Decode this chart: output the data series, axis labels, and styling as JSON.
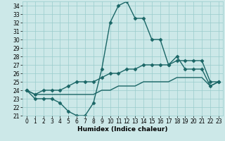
{
  "title": "",
  "xlabel": "Humidex (Indice chaleur)",
  "background_color": "#cce8e8",
  "grid_color": "#99cccc",
  "line_color": "#1a6666",
  "xlim": [
    -0.5,
    23.5
  ],
  "ylim": [
    21,
    34.5
  ],
  "yticks": [
    21,
    22,
    23,
    24,
    25,
    26,
    27,
    28,
    29,
    30,
    31,
    32,
    33,
    34
  ],
  "xticks": [
    0,
    1,
    2,
    3,
    4,
    5,
    6,
    7,
    8,
    9,
    10,
    11,
    12,
    13,
    14,
    15,
    16,
    17,
    18,
    19,
    20,
    21,
    22,
    23
  ],
  "series1_x": [
    0,
    1,
    2,
    3,
    4,
    5,
    6,
    7,
    8,
    9,
    10,
    11,
    12,
    13,
    14,
    15,
    16,
    17,
    18,
    19,
    20,
    21,
    22,
    23
  ],
  "series1_y": [
    24,
    23,
    23,
    23,
    22.5,
    21.5,
    21,
    21,
    22.5,
    26.5,
    32,
    34,
    34.5,
    32.5,
    32.5,
    30,
    30,
    27,
    28,
    26.5,
    26.5,
    26.5,
    24.5,
    25
  ],
  "series2_x": [
    0,
    1,
    2,
    3,
    4,
    5,
    6,
    7,
    8,
    9,
    10,
    11,
    12,
    13,
    14,
    15,
    16,
    17,
    18,
    19,
    20,
    21,
    22,
    23
  ],
  "series2_y": [
    24,
    23.5,
    24,
    24,
    24,
    24.5,
    25,
    25,
    25,
    25.5,
    26,
    26,
    26.5,
    26.5,
    27,
    27,
    27,
    27,
    27.5,
    27.5,
    27.5,
    27.5,
    25,
    25
  ],
  "series3_x": [
    0,
    1,
    2,
    3,
    4,
    5,
    6,
    7,
    8,
    9,
    10,
    11,
    12,
    13,
    14,
    15,
    16,
    17,
    18,
    19,
    20,
    21,
    22,
    23
  ],
  "series3_y": [
    24,
    23.5,
    23.5,
    23.5,
    23.5,
    23.5,
    23.5,
    23.5,
    23.5,
    24,
    24,
    24.5,
    24.5,
    24.5,
    25,
    25,
    25,
    25,
    25.5,
    25.5,
    25.5,
    25.5,
    24.5,
    25
  ],
  "marker": "D",
  "markersize": 2.5,
  "linewidth": 1.0,
  "tick_fontsize": 5.5,
  "xlabel_fontsize": 6.5
}
